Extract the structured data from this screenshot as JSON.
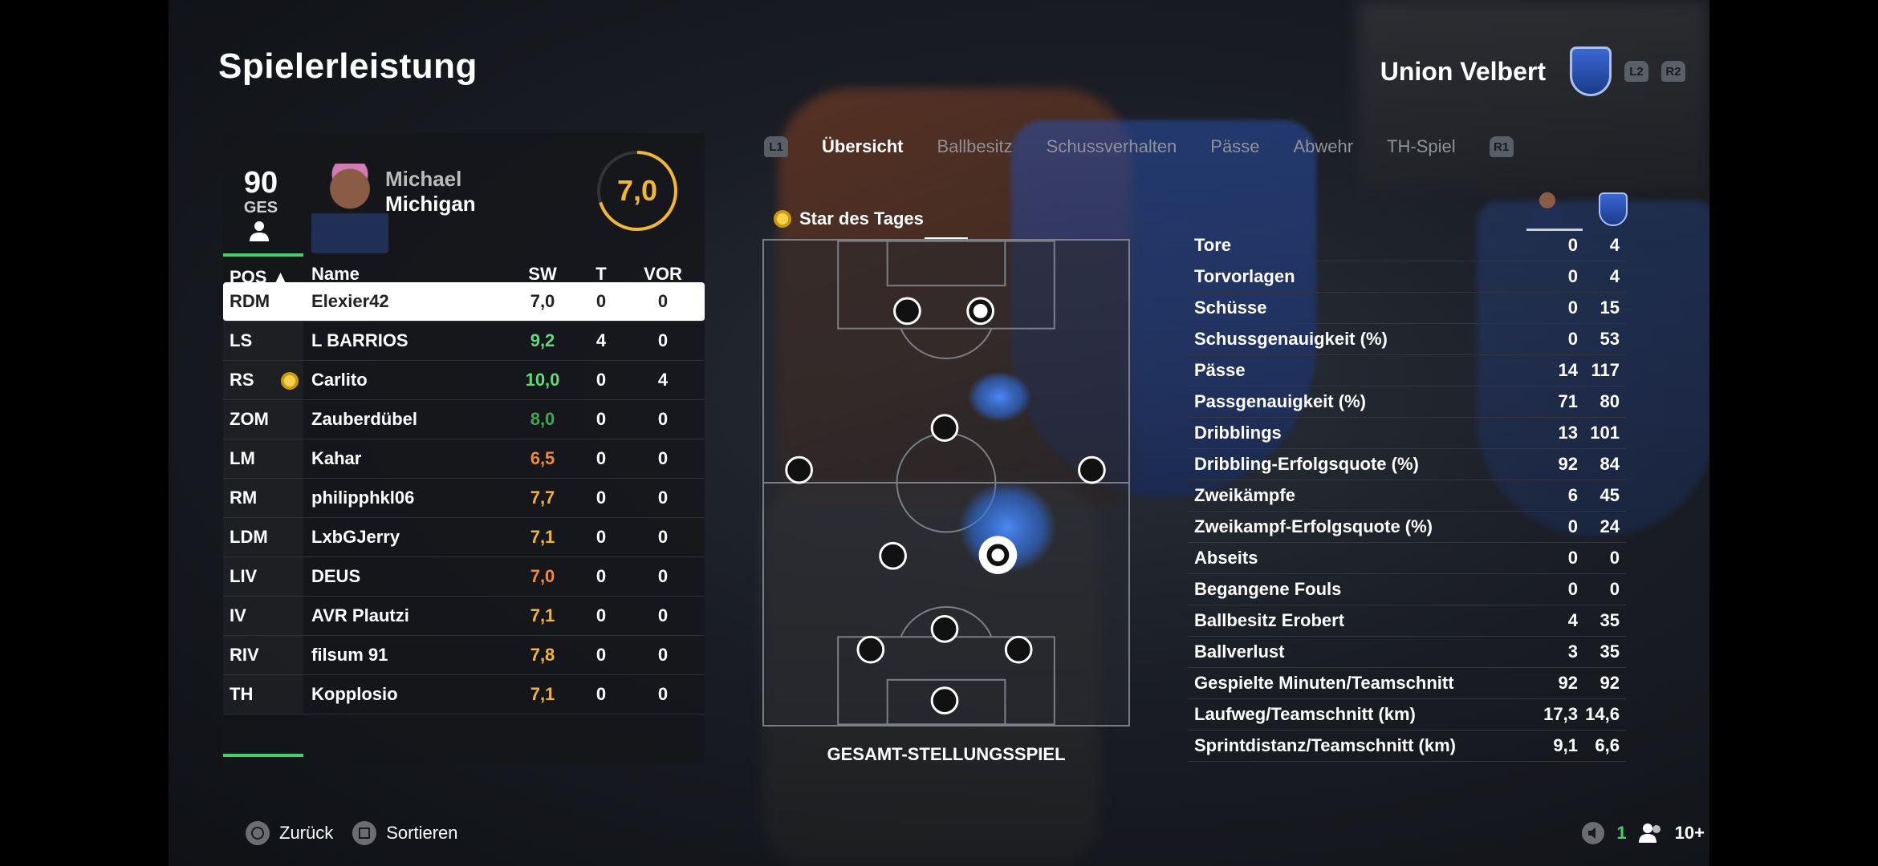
{
  "page_title": "Spielerleistung",
  "club": {
    "name": "Union Velbert",
    "left_trigger": "L2",
    "right_trigger": "R2"
  },
  "player": {
    "overall": "90",
    "overall_label": "GES",
    "first_name": "Michael",
    "last_name": "Michigan",
    "rating": "7,0",
    "rating_fraction": 0.7
  },
  "table": {
    "headers": {
      "pos": "POS ▲",
      "name": "Name",
      "sw": "SW",
      "t": "T",
      "vor": "VOR"
    },
    "rows": [
      {
        "pos": "RDM",
        "name": "Elexier42",
        "sw": "7,0",
        "t": "0",
        "vor": "0",
        "color": "#222222"
      },
      {
        "pos": "LS",
        "name": "L BARRIOS",
        "sw": "9,2",
        "t": "4",
        "vor": "0",
        "color": "#5fdc78"
      },
      {
        "pos": "RS",
        "name": "Carlito",
        "sw": "10,0",
        "t": "0",
        "vor": "4",
        "color": "#5fdc78"
      },
      {
        "pos": "ZOM",
        "name": "Zauberdübel",
        "sw": "8,0",
        "t": "0",
        "vor": "0",
        "color": "#3fa84f"
      },
      {
        "pos": "LM",
        "name": "Kahar",
        "sw": "6,5",
        "t": "0",
        "vor": "0",
        "color": "#f08a3c"
      },
      {
        "pos": "RM",
        "name": "philipphkl06",
        "sw": "7,7",
        "t": "0",
        "vor": "0",
        "color": "#f2b634"
      },
      {
        "pos": "LDM",
        "name": "LxbGJerry",
        "sw": "7,1",
        "t": "0",
        "vor": "0",
        "color": "#f2b634"
      },
      {
        "pos": "LIV",
        "name": "DEUS",
        "sw": "7,0",
        "t": "0",
        "vor": "0",
        "color": "#f08a3c"
      },
      {
        "pos": "IV",
        "name": "AVR Plautzi",
        "sw": "7,1",
        "t": "0",
        "vor": "0",
        "color": "#f2b634"
      },
      {
        "pos": "RIV",
        "name": "filsum 91",
        "sw": "7,8",
        "t": "0",
        "vor": "0",
        "color": "#f2b634"
      },
      {
        "pos": "TH",
        "name": "Kopplosio",
        "sw": "7,1",
        "t": "0",
        "vor": "0",
        "color": "#f2b634"
      }
    ]
  },
  "tabs": {
    "left_bumper": "L1",
    "right_bumper": "R1",
    "items": [
      "Übersicht",
      "Ballbesitz",
      "Schussverhalten",
      "Pässe",
      "Abwehr",
      "TH-Spiel"
    ]
  },
  "star_of_day": "Star des Tages",
  "pitch_caption": "GESAMT-STELLUNGSSPIEL",
  "stats": [
    {
      "label": "Tore",
      "player": "0",
      "team": "4"
    },
    {
      "label": "Torvorlagen",
      "player": "0",
      "team": "4"
    },
    {
      "label": "Schüsse",
      "player": "0",
      "team": "15"
    },
    {
      "label": "Schussgenauigkeit (%)",
      "player": "0",
      "team": "53"
    },
    {
      "label": "Pässe",
      "player": "14",
      "team": "117"
    },
    {
      "label": "Passgenauigkeit (%)",
      "player": "71",
      "team": "80"
    },
    {
      "label": "Dribblings",
      "player": "13",
      "team": "101"
    },
    {
      "label": "Dribbling-Erfolgsquote (%)",
      "player": "92",
      "team": "84"
    },
    {
      "label": "Zweikämpfe",
      "player": "6",
      "team": "45"
    },
    {
      "label": "Zweikampf-Erfolgsquote (%)",
      "player": "0",
      "team": "24"
    },
    {
      "label": "Abseits",
      "player": "0",
      "team": "0"
    },
    {
      "label": "Begangene Fouls",
      "player": "0",
      "team": "0"
    },
    {
      "label": "Ballbesitz Erobert",
      "player": "4",
      "team": "35"
    },
    {
      "label": "Ballverlust",
      "player": "3",
      "team": "35"
    },
    {
      "label": "Gespielte Minuten/Teamschnitt",
      "player": "92",
      "team": "92"
    },
    {
      "label": "Laufweg/Teamschnitt (km)",
      "player": "17,3",
      "team": "14,6"
    },
    {
      "label": "Sprintdistanz/Teamschnitt (km)",
      "player": "9,1",
      "team": "6,6"
    }
  ],
  "footer": {
    "back": "Zurück",
    "sort": "Sortieren",
    "count": "1",
    "players": "10+"
  }
}
